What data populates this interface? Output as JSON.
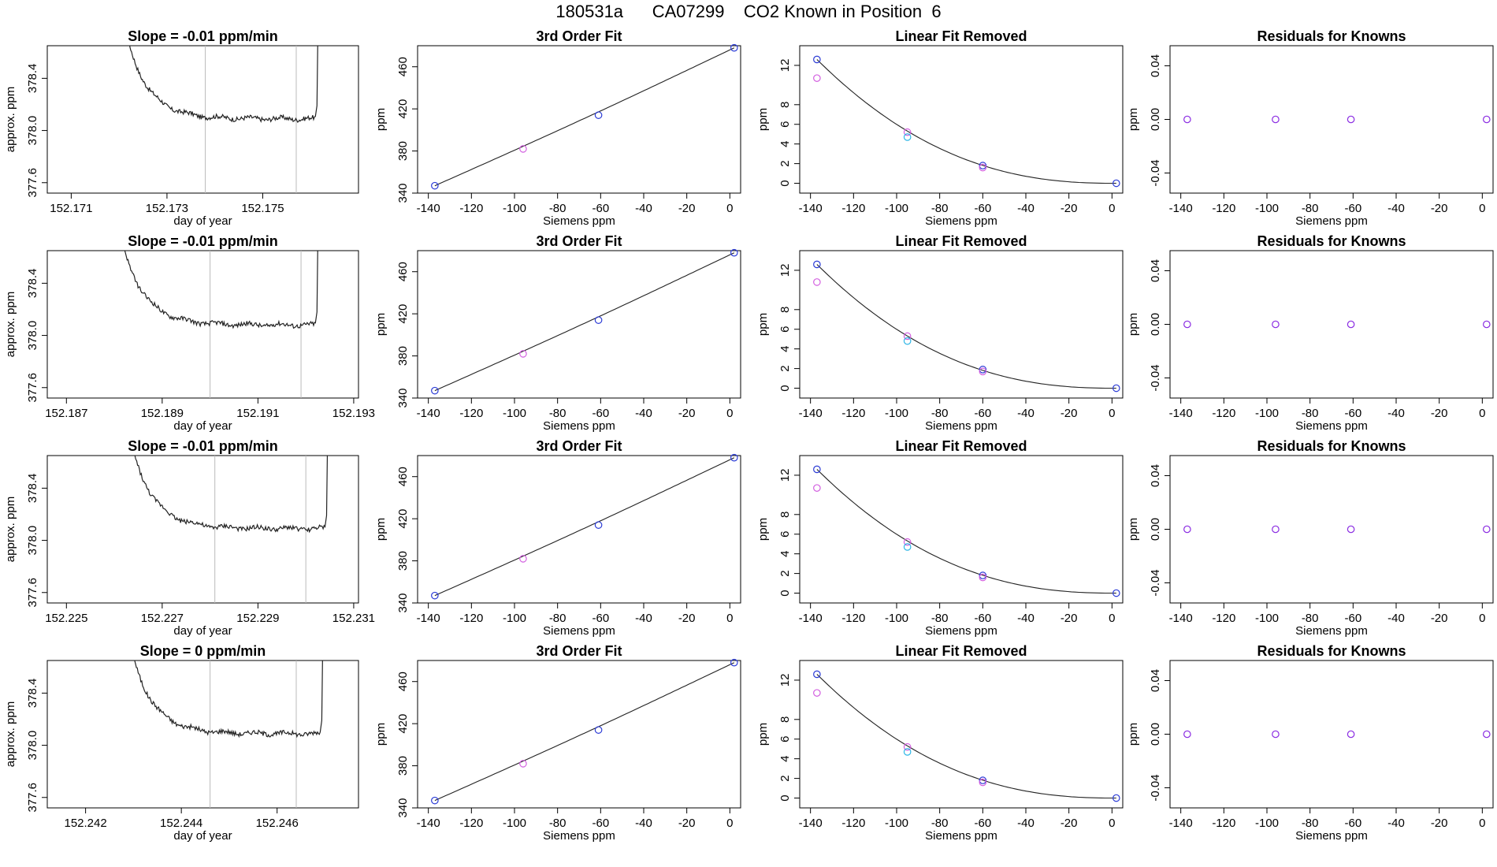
{
  "title": "180531a      CA07299    CO2 Known in Position  6",
  "colors": {
    "frame": "#000000",
    "curve": "#222222",
    "grid": "#bbbbbb",
    "blue": "#2b3bd6",
    "magenta": "#d35fe0",
    "cyan": "#2fb6e6",
    "purple": "#8a2be2",
    "red": "#ff4444"
  },
  "chart_data": [
    {
      "type": "line",
      "row": 1,
      "title": "Slope =  -0.01  ppm/min",
      "xlabel": "day of year",
      "ylabel": "approx. ppm",
      "xlim": [
        152.1705,
        152.177
      ],
      "ylim": [
        377.52,
        378.65
      ],
      "xticks": [
        "152.171",
        "152.173",
        "152.175"
      ],
      "yticks": [
        "377.6",
        "378.0",
        "378.4"
      ],
      "vlines": [
        152.1738,
        152.1757
      ],
      "flat_level": 378.09,
      "start": 152.172,
      "end": 152.1761
    },
    {
      "type": "scatter",
      "row": 1,
      "title": "3rd Order Fit",
      "xlabel": "Siemens ppm",
      "ylabel": "ppm",
      "xlim": [
        -145,
        5
      ],
      "ylim": [
        340,
        480
      ],
      "xticks": [
        "-140",
        "-120",
        "-100",
        "-80",
        "-60",
        "-40",
        "-20",
        "0"
      ],
      "yticks": [
        "340",
        "380",
        "420",
        "460"
      ],
      "points": [
        {
          "x": -137,
          "y": 347
        },
        {
          "x": -96,
          "y": 382
        },
        {
          "x": -61,
          "y": 414
        },
        {
          "x": 2,
          "y": 478
        }
      ]
    },
    {
      "type": "scatter",
      "row": 1,
      "title": "Linear Fit Removed",
      "xlabel": "Siemens ppm",
      "ylabel": "ppm",
      "xlim": [
        -145,
        5
      ],
      "ylim": [
        -1,
        14
      ],
      "xticks": [
        "-140",
        "-120",
        "-100",
        "-80",
        "-60",
        "-40",
        "-20",
        "0"
      ],
      "yticks": [
        "0",
        "2",
        "4",
        "6",
        "8",
        "12"
      ],
      "points": [
        {
          "x": -137,
          "y": 12.6,
          "series": "blue"
        },
        {
          "x": -137,
          "y": 10.7,
          "series": "magenta"
        },
        {
          "x": -95,
          "y": 5.2,
          "series": "magenta"
        },
        {
          "x": -95,
          "y": 4.7,
          "series": "cyan"
        },
        {
          "x": -60,
          "y": 1.8,
          "series": "blue"
        },
        {
          "x": -60,
          "y": 1.6,
          "series": "magenta"
        },
        {
          "x": 2,
          "y": 0,
          "series": "blue"
        }
      ]
    },
    {
      "type": "scatter",
      "row": 1,
      "title": "Residuals for Knowns",
      "xlabel": "Siemens ppm",
      "ylabel": "ppm",
      "xlim": [
        -145,
        5
      ],
      "ylim": [
        -0.055,
        0.055
      ],
      "xticks": [
        "-140",
        "-120",
        "-100",
        "-80",
        "-60",
        "-40",
        "-20",
        "0"
      ],
      "yticks": [
        "-0.04",
        "0.00",
        "0.04"
      ],
      "points": [
        {
          "x": -137,
          "y": 0
        },
        {
          "x": -96,
          "y": 0
        },
        {
          "x": -61,
          "y": 0
        },
        {
          "x": 2,
          "y": 0
        }
      ]
    },
    {
      "type": "line",
      "row": 2,
      "title": "Slope =  -0.01  ppm/min",
      "xlabel": "day of year",
      "ylabel": "approx. ppm",
      "xlim": [
        152.1866,
        152.1931
      ],
      "ylim": [
        377.52,
        378.65
      ],
      "xticks": [
        "152.187",
        "152.189",
        "152.191",
        "152.193"
      ],
      "yticks": [
        "377.6",
        "378.0",
        "378.4"
      ],
      "vlines": [
        152.19,
        152.1919
      ],
      "flat_level": 378.08,
      "start": 152.188,
      "end": 152.1922
    },
    {
      "type": "scatter",
      "row": 2,
      "title": "3rd Order Fit",
      "xlabel": "Siemens ppm",
      "ylabel": "ppm",
      "xlim": [
        -145,
        5
      ],
      "ylim": [
        340,
        480
      ],
      "xticks": [
        "-140",
        "-120",
        "-100",
        "-80",
        "-60",
        "-40",
        "-20",
        "0"
      ],
      "yticks": [
        "340",
        "380",
        "420",
        "460"
      ],
      "points": [
        {
          "x": -137,
          "y": 347
        },
        {
          "x": -96,
          "y": 382
        },
        {
          "x": -61,
          "y": 414
        },
        {
          "x": 2,
          "y": 478
        }
      ]
    },
    {
      "type": "scatter",
      "row": 2,
      "title": "Linear Fit Removed",
      "xlabel": "Siemens ppm",
      "ylabel": "ppm",
      "xlim": [
        -145,
        5
      ],
      "ylim": [
        -1,
        14
      ],
      "xticks": [
        "-140",
        "-120",
        "-100",
        "-80",
        "-60",
        "-40",
        "-20",
        "0"
      ],
      "yticks": [
        "0",
        "2",
        "4",
        "6",
        "8",
        "12"
      ],
      "points": [
        {
          "x": -137,
          "y": 12.6,
          "series": "blue"
        },
        {
          "x": -137,
          "y": 10.8,
          "series": "magenta"
        },
        {
          "x": -95,
          "y": 5.3,
          "series": "magenta"
        },
        {
          "x": -95,
          "y": 4.8,
          "series": "cyan"
        },
        {
          "x": -60,
          "y": 1.9,
          "series": "blue"
        },
        {
          "x": -60,
          "y": 1.7,
          "series": "magenta"
        },
        {
          "x": 2,
          "y": 0,
          "series": "blue"
        }
      ]
    },
    {
      "type": "scatter",
      "row": 2,
      "title": "Residuals for Knowns",
      "xlabel": "Siemens ppm",
      "ylabel": "ppm",
      "xlim": [
        -145,
        5
      ],
      "ylim": [
        -0.055,
        0.055
      ],
      "xticks": [
        "-140",
        "-120",
        "-100",
        "-80",
        "-60",
        "-40",
        "-20",
        "0"
      ],
      "yticks": [
        "-0.04",
        "0.00",
        "0.04"
      ],
      "points": [
        {
          "x": -137,
          "y": 0
        },
        {
          "x": -96,
          "y": 0
        },
        {
          "x": -61,
          "y": 0
        },
        {
          "x": 2,
          "y": 0
        }
      ]
    },
    {
      "type": "line",
      "row": 3,
      "title": "Slope =  -0.01  ppm/min",
      "xlabel": "day of year",
      "ylabel": "approx. ppm",
      "xlim": [
        152.2246,
        152.2311
      ],
      "ylim": [
        377.52,
        378.65
      ],
      "xticks": [
        "152.225",
        "152.227",
        "152.229",
        "152.231"
      ],
      "yticks": [
        "377.6",
        "378.0",
        "378.4"
      ],
      "vlines": [
        152.2281,
        152.23
      ],
      "flat_level": 378.09,
      "start": 152.2262,
      "end": 152.2304
    },
    {
      "type": "scatter",
      "row": 3,
      "title": "3rd Order Fit",
      "xlabel": "Siemens ppm",
      "ylabel": "ppm",
      "xlim": [
        -145,
        5
      ],
      "ylim": [
        340,
        480
      ],
      "xticks": [
        "-140",
        "-120",
        "-100",
        "-80",
        "-60",
        "-40",
        "-20",
        "0"
      ],
      "yticks": [
        "340",
        "380",
        "420",
        "460"
      ],
      "points": [
        {
          "x": -137,
          "y": 347
        },
        {
          "x": -96,
          "y": 382
        },
        {
          "x": -61,
          "y": 414
        },
        {
          "x": 2,
          "y": 478
        }
      ]
    },
    {
      "type": "scatter",
      "row": 3,
      "title": "Linear Fit Removed",
      "xlabel": "Siemens ppm",
      "ylabel": "ppm",
      "xlim": [
        -145,
        5
      ],
      "ylim": [
        -1,
        14
      ],
      "xticks": [
        "-140",
        "-120",
        "-100",
        "-80",
        "-60",
        "-40",
        "-20",
        "0"
      ],
      "yticks": [
        "0",
        "2",
        "4",
        "6",
        "8",
        "12"
      ],
      "points": [
        {
          "x": -137,
          "y": 12.6,
          "series": "blue"
        },
        {
          "x": -137,
          "y": 10.7,
          "series": "magenta"
        },
        {
          "x": -95,
          "y": 5.2,
          "series": "magenta"
        },
        {
          "x": -95,
          "y": 4.7,
          "series": "cyan"
        },
        {
          "x": -60,
          "y": 1.8,
          "series": "blue"
        },
        {
          "x": -60,
          "y": 1.6,
          "series": "magenta"
        },
        {
          "x": 2,
          "y": 0,
          "series": "blue"
        }
      ]
    },
    {
      "type": "scatter",
      "row": 3,
      "title": "Residuals for Knowns",
      "xlabel": "Siemens ppm",
      "ylabel": "ppm",
      "xlim": [
        -145,
        5
      ],
      "ylim": [
        -0.055,
        0.055
      ],
      "xticks": [
        "-140",
        "-120",
        "-100",
        "-80",
        "-60",
        "-40",
        "-20",
        "0"
      ],
      "yticks": [
        "-0.04",
        "0.00",
        "0.04"
      ],
      "points": [
        {
          "x": -137,
          "y": 0
        },
        {
          "x": -96,
          "y": 0
        },
        {
          "x": -61,
          "y": 0
        },
        {
          "x": 2,
          "y": 0
        }
      ]
    },
    {
      "type": "line",
      "row": 4,
      "title": "Slope =  0  ppm/min",
      "xlabel": "day of year",
      "ylabel": "approx. ppm",
      "xlim": [
        152.2412,
        152.2477
      ],
      "ylim": [
        377.52,
        378.65
      ],
      "xticks": [
        "152.242",
        "152.244",
        "152.246"
      ],
      "yticks": [
        "377.6",
        "378.0",
        "378.4"
      ],
      "vlines": [
        152.2446,
        152.2464
      ],
      "flat_level": 378.09,
      "start": 152.2428,
      "end": 152.2469
    },
    {
      "type": "scatter",
      "row": 4,
      "title": "3rd Order Fit",
      "xlabel": "Siemens ppm",
      "ylabel": "ppm",
      "xlim": [
        -145,
        5
      ],
      "ylim": [
        340,
        480
      ],
      "xticks": [
        "-140",
        "-120",
        "-100",
        "-80",
        "-60",
        "-40",
        "-20",
        "0"
      ],
      "yticks": [
        "340",
        "380",
        "420",
        "460"
      ],
      "points": [
        {
          "x": -137,
          "y": 347
        },
        {
          "x": -96,
          "y": 382
        },
        {
          "x": -61,
          "y": 414
        },
        {
          "x": 2,
          "y": 478
        }
      ]
    },
    {
      "type": "scatter",
      "row": 4,
      "title": "Linear Fit Removed",
      "xlabel": "Siemens ppm",
      "ylabel": "ppm",
      "xlim": [
        -145,
        5
      ],
      "ylim": [
        -1,
        14
      ],
      "xticks": [
        "-140",
        "-120",
        "-100",
        "-80",
        "-60",
        "-40",
        "-20",
        "0"
      ],
      "yticks": [
        "0",
        "2",
        "4",
        "6",
        "8",
        "12"
      ],
      "points": [
        {
          "x": -137,
          "y": 12.6,
          "series": "blue"
        },
        {
          "x": -137,
          "y": 10.7,
          "series": "magenta"
        },
        {
          "x": -95,
          "y": 5.2,
          "series": "magenta"
        },
        {
          "x": -95,
          "y": 4.7,
          "series": "cyan"
        },
        {
          "x": -60,
          "y": 1.8,
          "series": "blue"
        },
        {
          "x": -60,
          "y": 1.6,
          "series": "magenta"
        },
        {
          "x": 2,
          "y": 0,
          "series": "blue"
        }
      ]
    },
    {
      "type": "scatter",
      "row": 4,
      "title": "Residuals for Knowns",
      "xlabel": "Siemens ppm",
      "ylabel": "ppm",
      "xlim": [
        -145,
        5
      ],
      "ylim": [
        -0.055,
        0.055
      ],
      "xticks": [
        "-140",
        "-120",
        "-100",
        "-80",
        "-60",
        "-40",
        "-20",
        "0"
      ],
      "yticks": [
        "-0.04",
        "0.00",
        "0.04"
      ],
      "points": [
        {
          "x": -137,
          "y": 0
        },
        {
          "x": -96,
          "y": 0
        },
        {
          "x": -61,
          "y": 0
        },
        {
          "x": 2,
          "y": 0
        }
      ]
    }
  ]
}
